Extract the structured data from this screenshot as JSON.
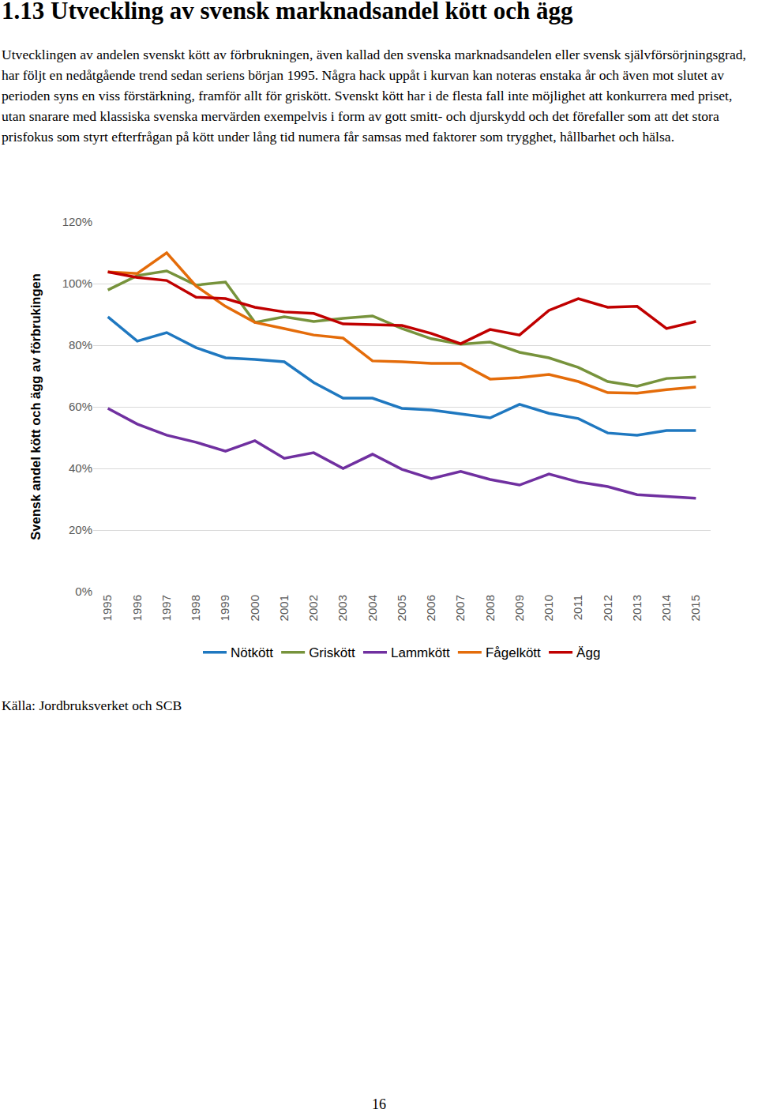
{
  "heading": "1.13 Utveckling av svensk marknadsandel kött och ägg",
  "paragraph": "Utvecklingen av andelen svenskt kött av förbrukningen, även kallad den svenska marknadsandelen eller svensk självförsörjningsgrad, har följt en nedåtgående trend sedan seriens början 1995. Några hack uppåt i kurvan kan noteras enstaka år och även mot slutet av perioden syns en viss förstärkning, framför allt för griskött. Svenskt kött har i de flesta fall inte möjlighet att konkurrera med priset, utan snarare med klassiska svenska mervärden exempelvis i form av gott smitt- och djurskydd och det förefaller som att det stora prisfokus som styrt efterfrågan på kött under lång tid numera får samsas med faktorer som trygghet, hållbarhet och hälsa.",
  "source": "Källa: Jordbruksverket och SCB",
  "page_number": "16",
  "chart_data": {
    "type": "line",
    "y_label": "Svensk andel kött och ägg av förbrukingen",
    "categories": [
      "1995",
      "1996",
      "1997",
      "1998",
      "1999",
      "2000",
      "2001",
      "2002",
      "2003",
      "2004",
      "2005",
      "2006",
      "2007",
      "2008",
      "2009",
      "2010",
      "2011",
      "2012",
      "2013",
      "2014",
      "2015"
    ],
    "series": [
      {
        "name": "Nötkött",
        "color": "#1f78c0",
        "values": [
          89.2,
          81.3,
          84.1,
          79.2,
          75.9,
          75.4,
          74.6,
          67.9,
          62.8,
          62.8,
          59.5,
          59.0,
          57.7,
          56.4,
          60.8,
          57.9,
          56.2,
          51.5,
          50.8,
          52.3,
          52.3
        ]
      },
      {
        "name": "Griskött",
        "color": "#77933c",
        "values": [
          97.9,
          102.6,
          104.1,
          99.5,
          100.5,
          87.4,
          89.2,
          87.7,
          88.7,
          89.5,
          85.4,
          82.1,
          80.3,
          81.0,
          77.7,
          75.9,
          72.8,
          68.2,
          66.7,
          69.2,
          69.7
        ]
      },
      {
        "name": "Lammkött",
        "color": "#7030a0",
        "values": [
          59.5,
          54.4,
          50.8,
          48.5,
          45.6,
          49.0,
          43.3,
          45.1,
          40.0,
          44.6,
          39.7,
          36.7,
          39.0,
          36.4,
          34.6,
          38.2,
          35.6,
          34.1,
          31.5,
          31.0,
          30.3
        ]
      },
      {
        "name": "Fågelkött",
        "color": "#e46c0a",
        "values": [
          103.8,
          103.3,
          110.0,
          99.2,
          92.6,
          87.4,
          85.4,
          83.3,
          82.3,
          74.9,
          74.6,
          74.1,
          74.1,
          69.0,
          69.5,
          70.5,
          68.2,
          64.6,
          64.4,
          65.6,
          66.4
        ]
      },
      {
        "name": "Ägg",
        "color": "#c00000",
        "values": [
          103.8,
          102.0,
          101.0,
          95.6,
          95.1,
          92.3,
          90.8,
          90.3,
          86.9,
          86.7,
          86.4,
          83.8,
          80.5,
          85.1,
          83.3,
          91.3,
          95.1,
          92.3,
          92.6,
          85.4,
          87.7
        ]
      }
    ],
    "ylim": [
      0,
      120
    ],
    "yticks": [
      {
        "value": 0,
        "label": "0%"
      },
      {
        "value": 20,
        "label": "20%"
      },
      {
        "value": 40,
        "label": "40%"
      },
      {
        "value": 60,
        "label": "60%"
      },
      {
        "value": 80,
        "label": "80%"
      },
      {
        "value": 100,
        "label": "100%"
      },
      {
        "value": 120,
        "label": "120%"
      }
    ],
    "grid": true,
    "legend": "bottom"
  }
}
